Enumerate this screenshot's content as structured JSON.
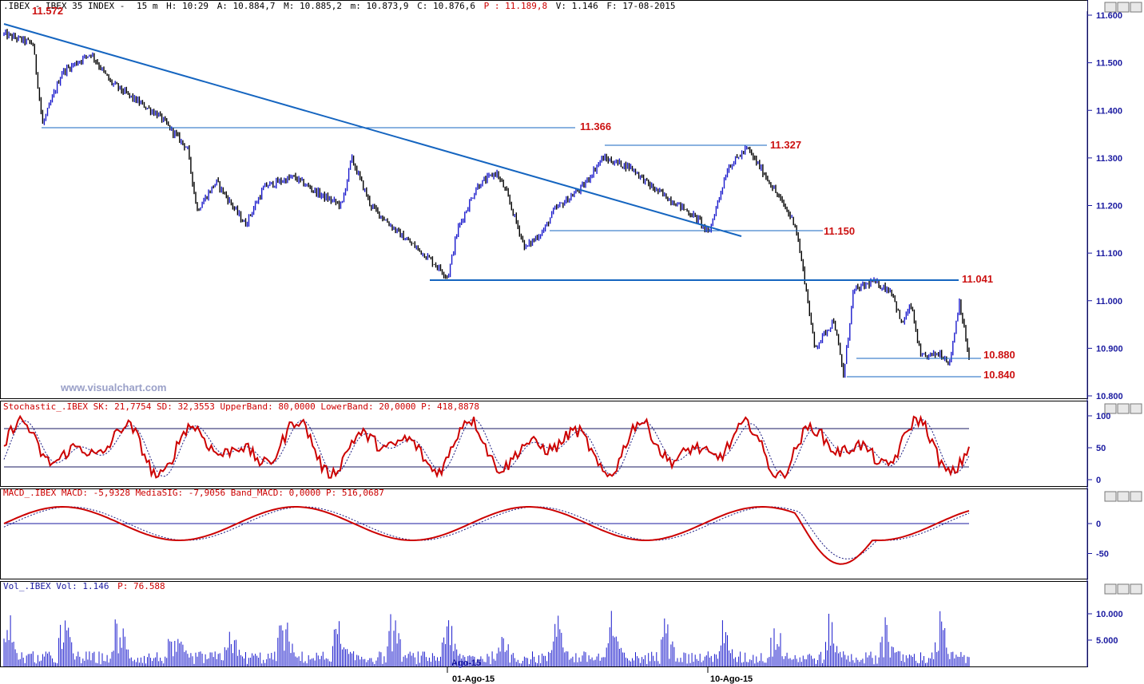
{
  "header": {
    "symbol": ".IBEX - IBEX 35 INDEX -",
    "interval": "15 m",
    "h": "H: 10:29",
    "a": "A: 10.884,7",
    "m": "M: 10.885,2",
    "mn": "m: 10.873,9",
    "c": "C: 10.876,6",
    "p": "P : 11.189,8",
    "v": "V: 1.146",
    "f": "F: 17-08-2015",
    "partial_label": "11.572"
  },
  "watermark": "www.visualchart.com",
  "colors": {
    "up": "#1a1acc",
    "down": "#000000",
    "line": "#1565c0",
    "stoch": "#cc0000",
    "level_text": "#cc1111",
    "axis": "#1a1aa0"
  },
  "price_panel": {
    "axis_ticks": [
      "11.600",
      "11.500",
      "11.400",
      "11.300",
      "11.200",
      "11.100",
      "11.000",
      "10.900",
      "10.800"
    ],
    "levels": [
      "11.366",
      "11.327",
      "11.150",
      "11.041",
      "10.880",
      "10.840"
    ]
  },
  "stoch_panel": {
    "title": "Stochastic_.IBEX SK: 21,7754 SD: 32,3553 UpperBand: 80,0000 LowerBand: 20,0000 P: 418,8878",
    "axis_ticks": [
      "100",
      "50",
      "0"
    ]
  },
  "macd_panel": {
    "title": "MACD_.IBEX MACD: -5,9328 MediaSIG: -7,9056 Band_MACD: 0,0000 P: 516,0687",
    "axis_ticks": [
      "0",
      "-50"
    ]
  },
  "vol_panel": {
    "title_prefix": "Vol_.IBEX Vol: 1.146",
    "title_p": "P: 76.588",
    "axis_ticks": [
      "10.000",
      "5.000"
    ]
  },
  "x_axis": {
    "labels": [
      "01-Ago-15",
      "10-Ago-15"
    ],
    "overlay": "Ago-15"
  },
  "chart_data": {
    "type": "line",
    "title": "IBEX 35 INDEX 15 m",
    "price": {
      "ylim": [
        10780,
        11620
      ],
      "path": [
        [
          0,
          11560
        ],
        [
          0.03,
          11540
        ],
        [
          0.04,
          11370
        ],
        [
          0.06,
          11480
        ],
        [
          0.09,
          11520
        ],
        [
          0.11,
          11460
        ],
        [
          0.13,
          11430
        ],
        [
          0.16,
          11390
        ],
        [
          0.19,
          11320
        ],
        [
          0.2,
          11190
        ],
        [
          0.22,
          11250
        ],
        [
          0.25,
          11160
        ],
        [
          0.27,
          11240
        ],
        [
          0.3,
          11260
        ],
        [
          0.33,
          11220
        ],
        [
          0.35,
          11200
        ],
        [
          0.36,
          11300
        ],
        [
          0.38,
          11200
        ],
        [
          0.41,
          11140
        ],
        [
          0.44,
          11090
        ],
        [
          0.46,
          11050
        ],
        [
          0.47,
          11150
        ],
        [
          0.49,
          11240
        ],
        [
          0.51,
          11270
        ],
        [
          0.52,
          11230
        ],
        [
          0.54,
          11110
        ],
        [
          0.56,
          11150
        ],
        [
          0.57,
          11190
        ],
        [
          0.6,
          11240
        ],
        [
          0.62,
          11300
        ],
        [
          0.65,
          11280
        ],
        [
          0.67,
          11240
        ],
        [
          0.7,
          11200
        ],
        [
          0.72,
          11170
        ],
        [
          0.73,
          11140
        ],
        [
          0.75,
          11280
        ],
        [
          0.77,
          11320
        ],
        [
          0.79,
          11260
        ],
        [
          0.82,
          11160
        ],
        [
          0.83,
          11040
        ],
        [
          0.84,
          10900
        ],
        [
          0.86,
          10960
        ],
        [
          0.87,
          10840
        ],
        [
          0.88,
          11020
        ],
        [
          0.9,
          11040
        ],
        [
          0.92,
          11020
        ],
        [
          0.93,
          10950
        ],
        [
          0.94,
          10990
        ],
        [
          0.95,
          10880
        ],
        [
          0.97,
          10890
        ],
        [
          0.98,
          10870
        ],
        [
          0.99,
          11000
        ],
        [
          1.0,
          10877
        ]
      ],
      "downtrend_line": [
        [
          0,
          11580
        ],
        [
          0.78,
          11130
        ]
      ],
      "horizontal_levels": [
        11366,
        11327,
        11150,
        11041,
        10880,
        10840
      ]
    },
    "stochastic": {
      "ylim": [
        0,
        100
      ],
      "upper_band": 80,
      "lower_band": 20,
      "sk_last": 21.7754,
      "sd_last": 32.3553
    },
    "macd": {
      "macd_last": -5.9328,
      "signal_last": -7.9056,
      "band": 0
    },
    "volume": {
      "last": 1146,
      "p": 76588
    }
  }
}
